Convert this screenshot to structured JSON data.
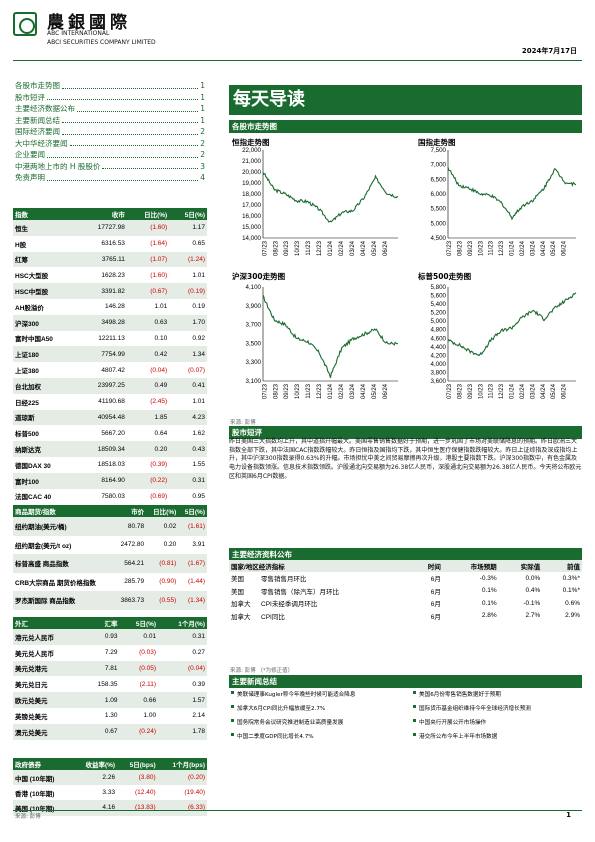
{
  "header": {
    "logo_cn": "農銀國際",
    "logo_en1": "ABC INTERNATIONAL",
    "logo_en2": "ABCI SECURITIES COMPANY LIMITED",
    "date": "2024年7月17日"
  },
  "toc": [
    {
      "title": "各股市走势图",
      "page": "1"
    },
    {
      "title": "股市短评",
      "page": "1"
    },
    {
      "title": "主要经济数据公布",
      "page": "1"
    },
    {
      "title": "主要新闻总结",
      "page": "1"
    },
    {
      "title": "国际经济要闻",
      "page": "2"
    },
    {
      "title": "大中华经济要闻",
      "page": "2"
    },
    {
      "title": "企业要闻",
      "page": "2"
    },
    {
      "title": "中港两地上市的 H 股股价",
      "page": "3"
    },
    {
      "title": "免责声明",
      "page": "4"
    }
  ],
  "index_table": {
    "headers": [
      "指数",
      "收市",
      "日比(%)",
      "5日(%)"
    ],
    "rows": [
      [
        "恒生",
        "17727.98",
        "(1.60)",
        "1.17"
      ],
      [
        "H股",
        "6316.53",
        "(1.64)",
        "0.65"
      ],
      [
        "红筹",
        "3765.11",
        "(1.07)",
        "(1.24)"
      ],
      [
        "HSC大型股",
        "1628.23",
        "(1.60)",
        "1.01"
      ],
      [
        "HSC中型股",
        "3391.82",
        "(0.67)",
        "(0.19)"
      ],
      [
        "AH股溢价",
        "146.28",
        "1.01",
        "0.19"
      ],
      [
        "沪深300",
        "3498.28",
        "0.63",
        "1.70"
      ],
      [
        "富时中国A50",
        "12211.13",
        "0.10",
        "0.92"
      ],
      [
        "上证180",
        "7754.99",
        "0.42",
        "1.34"
      ],
      [
        "上证380",
        "4807.42",
        "(0.04)",
        "(0.07)"
      ],
      [
        "台北加权",
        "23997.25",
        "0.49",
        "0.41"
      ],
      [
        "日经225",
        "41190.68",
        "(2.45)",
        "1.01"
      ],
      [
        "道琼斯",
        "40954.48",
        "1.85",
        "4.23"
      ],
      [
        "标普500",
        "5667.20",
        "0.64",
        "1.62"
      ],
      [
        "纳斯达克",
        "18509.34",
        "0.20",
        "0.43"
      ],
      [
        "德国DAX 30",
        "18518.03",
        "(0.39)",
        "1.55"
      ],
      [
        "富时100",
        "8164.90",
        "(0.22)",
        "0.31"
      ],
      [
        "法国CAC 40",
        "7580.03",
        "(0.69)",
        "0.95"
      ]
    ]
  },
  "commodity_table": {
    "headers": [
      "商品期货/指数",
      "市价",
      "日比(%)",
      "5日(%)"
    ],
    "rows": [
      [
        "纽约期油(美元/桶)",
        "80.78",
        "0.02",
        "(1.61)"
      ],
      [
        "纽约期金(美元/t oz)",
        "2472.80",
        "0.20",
        "3.91"
      ],
      [
        "标普高盛 商品指数",
        "564.21",
        "(0.81)",
        "(1.67)"
      ],
      [
        "CRB大宗商品 期货价格指数",
        "285.79",
        "(0.90)",
        "(1.44)"
      ],
      [
        "罗杰斯国际 商品指数",
        "3863.73",
        "(0.55)",
        "(1.34)"
      ]
    ]
  },
  "fx_table": {
    "headers": [
      "外汇",
      "汇率",
      "5日(%)",
      "1个月(%)"
    ],
    "rows": [
      [
        "港元兑人民币",
        "0.93",
        "0.01",
        "0.31"
      ],
      [
        "美元兑人民币",
        "7.29",
        "(0.03)",
        "0.27"
      ],
      [
        "美元兑港元",
        "7.81",
        "(0.05)",
        "(0.04)"
      ],
      [
        "美元兑日元",
        "158.35",
        "(2.11)",
        "0.39"
      ],
      [
        "欧元兑美元",
        "1.09",
        "0.66",
        "1.57"
      ],
      [
        "英镑兑美元",
        "1.30",
        "1.00",
        "2.14"
      ],
      [
        "澳元兑美元",
        "0.67",
        "(0.24)",
        "1.78"
      ]
    ]
  },
  "bond_table": {
    "headers": [
      "政府债券",
      "收益率(%)",
      "5日(bps)",
      "1个月(bps)"
    ],
    "rows": [
      [
        "中国 (10年期)",
        "2.26",
        "(3.80)",
        "(0.20)"
      ],
      [
        "香港 (10年期)",
        "3.33",
        "(12.40)",
        "(19.40)"
      ],
      [
        "美国 (10年期)",
        "4.16",
        "(13.83)",
        "(6.33)"
      ]
    ]
  },
  "left_source": "来源: 彭博",
  "banner": "每天导读",
  "charts_section": "各股市走势图",
  "chart_hsi": {
    "title": "恒指走势图",
    "yticks": [
      "22,000",
      "21,000",
      "20,000",
      "19,000",
      "18,000",
      "17,000",
      "16,000",
      "15,000",
      "14,000"
    ],
    "xticks": [
      "07/23",
      "08/23",
      "09/23",
      "10/23",
      "11/23",
      "12/23",
      "01/24",
      "02/24",
      "03/24",
      "04/24",
      "05/24",
      "06/24"
    ]
  },
  "chart_hscei": {
    "title": "国指走势图",
    "yticks": [
      "7,500",
      "7,000",
      "6,500",
      "6,000",
      "5,500",
      "5,000",
      "4,500"
    ],
    "xticks": [
      "07/23",
      "08/23",
      "09/23",
      "10/23",
      "11/23",
      "12/23",
      "01/24",
      "02/24",
      "03/24",
      "04/24",
      "05/24",
      "06/24"
    ]
  },
  "chart_csi": {
    "title": "沪深300走势图",
    "yticks": [
      "4,100",
      "3,900",
      "3,700",
      "3,500",
      "3,300",
      "3,100"
    ],
    "xticks": [
      "07/23",
      "08/23",
      "09/23",
      "10/23",
      "11/23",
      "12/23",
      "01/24",
      "02/24",
      "03/24",
      "04/24",
      "05/24",
      "06/24"
    ]
  },
  "chart_spx": {
    "title": "标普500走势图",
    "yticks": [
      "5,800",
      "5,600",
      "5,400",
      "5,200",
      "5,000",
      "4,800",
      "4,600",
      "4,400",
      "4,200",
      "4,000",
      "3,800",
      "3,600"
    ],
    "xticks": [
      "07/23",
      "08/23",
      "09/23",
      "10/23",
      "11/23",
      "12/23",
      "01/24",
      "02/24",
      "03/24",
      "04/24",
      "05/24",
      "06/24"
    ]
  },
  "chart_data": [
    {
      "type": "line",
      "title": "恒指走势图",
      "x": [
        "07/23",
        "08/23",
        "09/23",
        "10/23",
        "11/23",
        "12/23",
        "01/24",
        "02/24",
        "03/24",
        "04/24",
        "05/24",
        "06/24",
        "07/24"
      ],
      "series": [
        {
          "values": [
            20000,
            18400,
            18000,
            17400,
            17300,
            16600,
            15400,
            16300,
            16500,
            17700,
            19500,
            18100,
            17728
          ]
        }
      ],
      "ylim": [
        14000,
        22000
      ]
    },
    {
      "type": "line",
      "title": "国指走势图",
      "x": [
        "07/23",
        "08/23",
        "09/23",
        "10/23",
        "11/23",
        "12/23",
        "01/24",
        "02/24",
        "03/24",
        "04/24",
        "05/24",
        "06/24",
        "07/24"
      ],
      "series": [
        {
          "values": [
            6900,
            6300,
            6200,
            6000,
            5950,
            5700,
            5200,
            5600,
            5800,
            6200,
            6850,
            6400,
            6317
          ]
        }
      ],
      "ylim": [
        4500,
        7500
      ]
    },
    {
      "type": "line",
      "title": "沪深300走势图",
      "x": [
        "07/23",
        "08/23",
        "09/23",
        "10/23",
        "11/23",
        "12/23",
        "01/24",
        "02/24",
        "03/24",
        "04/24",
        "05/24",
        "06/24",
        "07/24"
      ],
      "series": [
        {
          "values": [
            4000,
            3750,
            3700,
            3550,
            3520,
            3400,
            3150,
            3450,
            3550,
            3600,
            3650,
            3500,
            3498
          ]
        }
      ],
      "ylim": [
        3100,
        4100
      ]
    },
    {
      "type": "line",
      "title": "标普500走势图",
      "x": [
        "07/23",
        "08/23",
        "09/23",
        "10/23",
        "11/23",
        "12/23",
        "01/24",
        "02/24",
        "03/24",
        "04/24",
        "05/24",
        "06/24",
        "07/24"
      ],
      "series": [
        {
          "values": [
            4550,
            4450,
            4300,
            4200,
            4550,
            4770,
            4850,
            5100,
            5250,
            5050,
            5300,
            5480,
            5667
          ]
        }
      ],
      "ylim": [
        3600,
        5800
      ]
    }
  ],
  "chart_source": "来源: 彭博",
  "comment_section": "股市短评",
  "comment_text": "昨日美国三大指数均上升，其中道指升幅最大。美国零售销售数据好于预期，进一步巩固了市场对美联储降息的预期。昨日欧洲三大指数全部下跌，其中法国CAC指数跌幅较大。昨日恒指及国指均下跌，其中恒生医疗保健指数跌幅较大。昨日上证综指及深成指均上升，其中沪深300指数录得0.63%的升幅。市场担忧中美之间贸易摩擦再次升级，港股主要指数下跌。沪深300指数中，有色金属及电力设备指数领涨。信息技术指数领跌。沪股通北向交易额为26.38亿人民币，深股通北向交易额为26.38亿人民币。今天将公布欧元区和英国6月CPI数据。",
  "econ_section": "主要经济资料公布",
  "econ_table": {
    "headers": [
      "国家/地区经济指标",
      "时间",
      "市场预期",
      "实际值",
      "前值"
    ],
    "rows": [
      [
        "美国",
        "零售销售月环比",
        "6月",
        "-0.3%",
        "0.0%",
        "0.3%*"
      ],
      [
        "美国",
        "零售销售（除汽车）月环比",
        "6月",
        "0.1%",
        "0.4%",
        "0.1%*"
      ],
      [
        "加拿大",
        "CPI未经季调月环比",
        "6月",
        "0.1%",
        "-0.1%",
        "0.6%"
      ],
      [
        "加拿大",
        "CPI同比",
        "6月",
        "2.8%",
        "2.7%",
        "2.9%"
      ]
    ]
  },
  "econ_source": "来源: 彭博 （*为修正值）",
  "news_section": "主要新闻总结",
  "news": [
    "美联储理事Kugler称今年晚些时候可能适合降息",
    "美国6月份零售销售数据好于预期",
    "加拿大6月CPI同比升幅放缓至2.7%",
    "国际货币基金组织维持今年全球经济增长预测",
    "国务院常务会议研究推进制造业高质量发展",
    "中国央行开展公开市场操作",
    "中国二季度GDP同比增长4.7%",
    "港交所公布今年上半年市场数据"
  ],
  "page_number": "1"
}
